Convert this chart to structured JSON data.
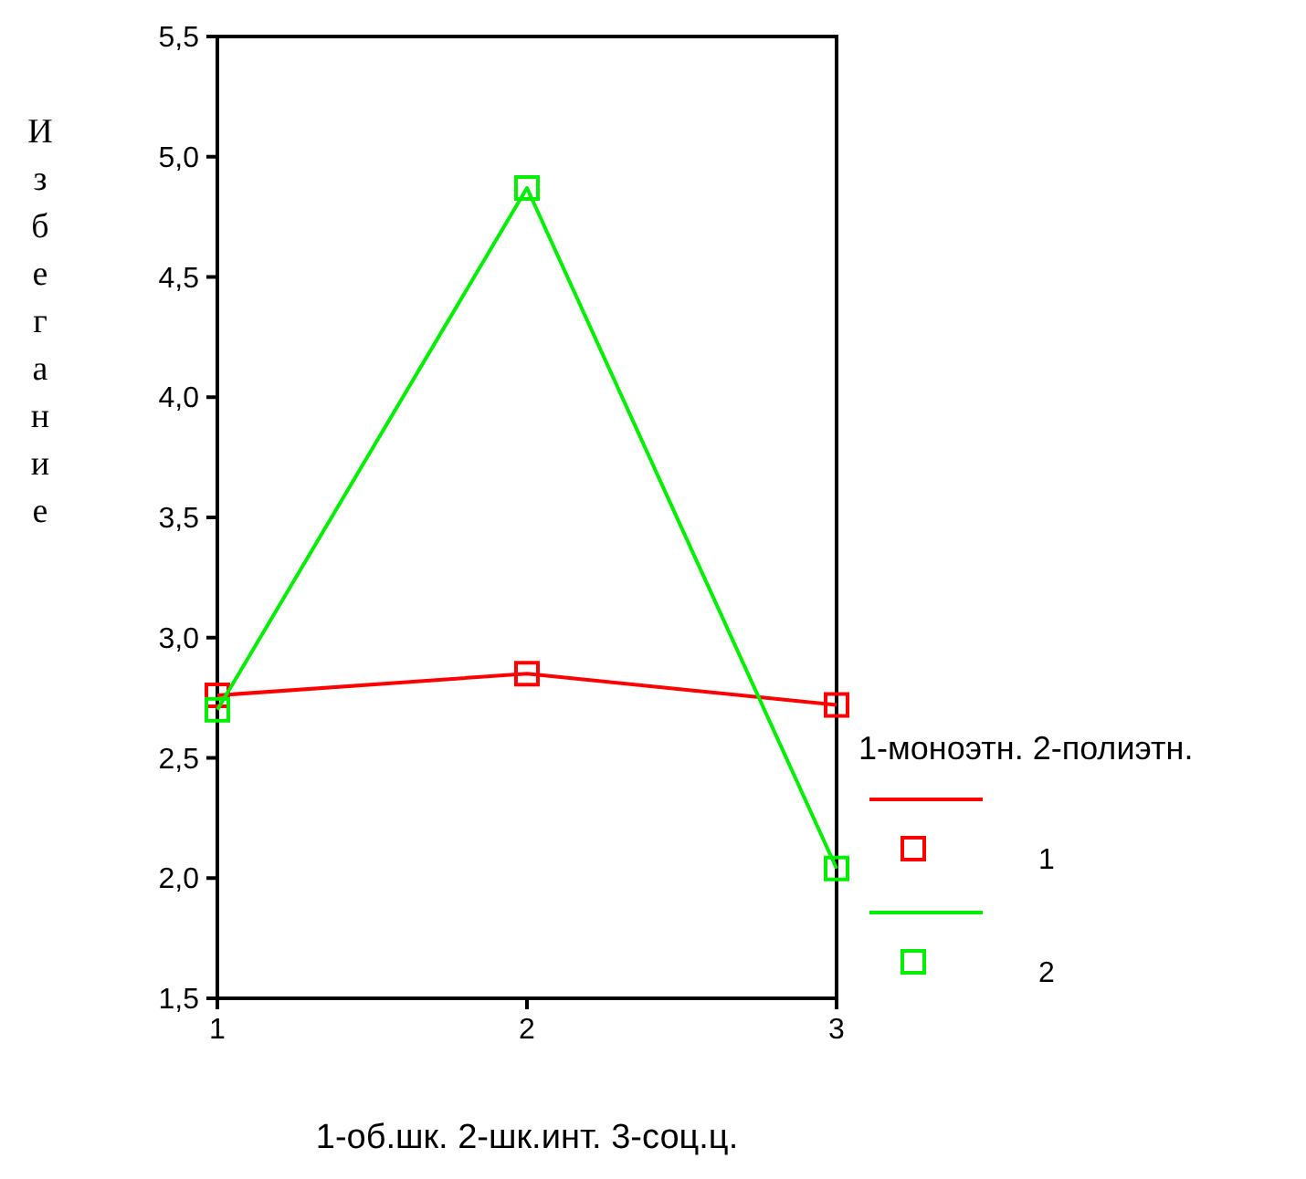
{
  "chart_data": {
    "type": "line",
    "xlabel": "1-об.шк. 2-шк.инт. 3-соц.ц.",
    "ylabel": "Избегание",
    "legend_title": "1-моноэтн. 2-полиэтн.",
    "x": [
      1,
      2,
      3
    ],
    "series": [
      {
        "name": "1",
        "color": "#ff0000",
        "values": [
          2.76,
          2.85,
          2.72
        ]
      },
      {
        "name": "2",
        "color": "#00ee00",
        "values": [
          2.7,
          4.87,
          2.04
        ]
      }
    ],
    "xlim": [
      1,
      3
    ],
    "xticks": [
      1,
      2,
      3
    ],
    "ylim": [
      1.5,
      5.5
    ],
    "yticks": [
      {
        "value": 1.5,
        "label": "1,5"
      },
      {
        "value": 2,
        "label": "2,0"
      },
      {
        "value": 2.5,
        "label": "2,5"
      },
      {
        "value": 3,
        "label": "3,0"
      },
      {
        "value": 3.5,
        "label": "3,5"
      },
      {
        "value": 4,
        "label": "4,0"
      },
      {
        "value": 4.5,
        "label": "4,5"
      },
      {
        "value": 5,
        "label": "5,0"
      },
      {
        "value": 5.5,
        "label": "5,5"
      }
    ],
    "marker": "square",
    "legend": "right",
    "grid": false,
    "line_style": "solid"
  }
}
